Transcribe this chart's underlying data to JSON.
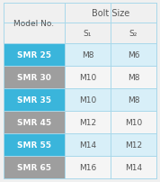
{
  "title": "Bolt Size",
  "col_header_main": "Model No.",
  "col_headers": [
    "S₁",
    "S₂"
  ],
  "rows": [
    {
      "model": "SMR 25",
      "s1": "M8",
      "s2": "M6",
      "highlight": true
    },
    {
      "model": "SMR 30",
      "s1": "M10",
      "s2": "M8",
      "highlight": false
    },
    {
      "model": "SMR 35",
      "s1": "M10",
      "s2": "M8",
      "highlight": true
    },
    {
      "model": "SMR 45",
      "s1": "M12",
      "s2": "M10",
      "highlight": false
    },
    {
      "model": "SMR 55",
      "s1": "M14",
      "s2": "M12",
      "highlight": true
    },
    {
      "model": "SMR 65",
      "s1": "M16",
      "s2": "M14",
      "highlight": false
    }
  ],
  "color_blue": "#3ab5db",
  "color_gray": "#9e9e9e",
  "color_light_blue": "#d8eff8",
  "color_light_blue2": "#eaf7fc",
  "color_white": "#f5f5f5",
  "color_text_dark": "#555555",
  "color_text_white": "#ffffff",
  "color_border": "#a8d8ea",
  "background_color": "#f0f0f0",
  "figw": 1.78,
  "figh": 2.03,
  "dpi": 100
}
